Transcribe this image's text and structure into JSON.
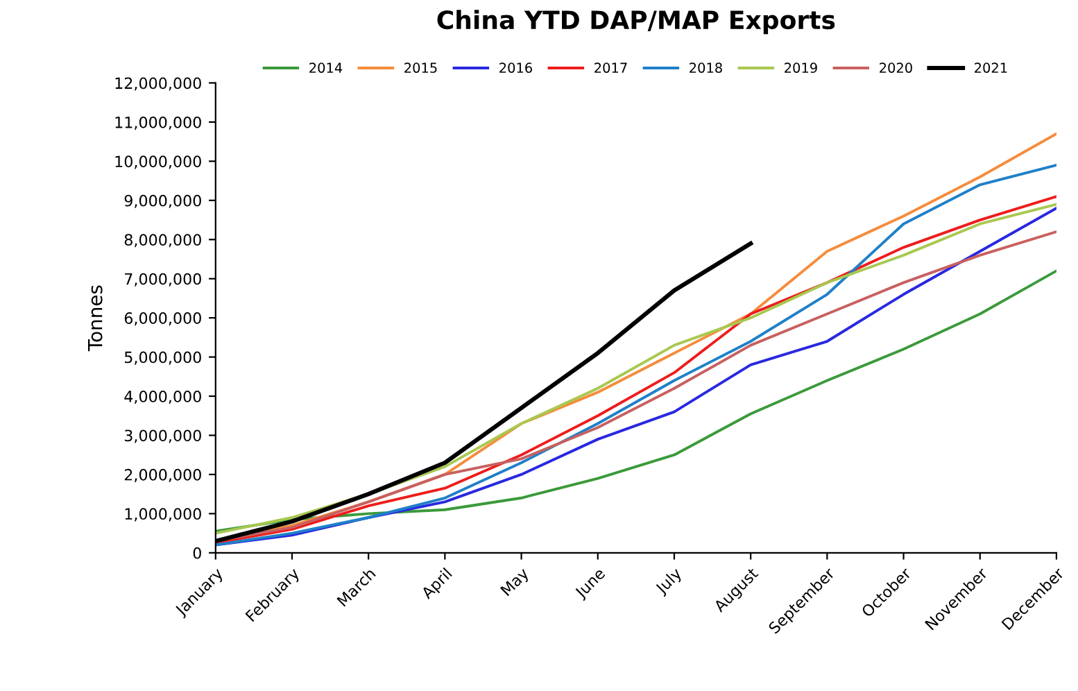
{
  "chart_data": {
    "type": "line",
    "title": "China YTD DAP/MAP Exports",
    "ylabel": "Tonnes",
    "categories": [
      "January",
      "February",
      "March",
      "April",
      "May",
      "June",
      "July",
      "August",
      "September",
      "October",
      "November",
      "December"
    ],
    "series": [
      {
        "name": "2014",
        "color": "#3a9a3a",
        "values": [
          550000,
          850000,
          1000000,
          1100000,
          1400000,
          1900000,
          2500000,
          3550000,
          4400000,
          5200000,
          6100000,
          7200000
        ]
      },
      {
        "name": "2015",
        "color": "#f58c3c",
        "values": [
          300000,
          700000,
          1300000,
          2000000,
          3300000,
          4100000,
          5100000,
          6100000,
          7700000,
          8600000,
          9600000,
          10700000
        ]
      },
      {
        "name": "2016",
        "color": "#2828e0",
        "values": [
          200000,
          450000,
          900000,
          1300000,
          2000000,
          2900000,
          3600000,
          4800000,
          5400000,
          6600000,
          7700000,
          8800000
        ]
      },
      {
        "name": "2017",
        "color": "#ee1c1c",
        "values": [
          250000,
          600000,
          1200000,
          1650000,
          2500000,
          3500000,
          4600000,
          6100000,
          6900000,
          7800000,
          8500000,
          9100000
        ]
      },
      {
        "name": "2018",
        "color": "#1f80c8",
        "values": [
          200000,
          500000,
          900000,
          1400000,
          2300000,
          3300000,
          4400000,
          5400000,
          6600000,
          8400000,
          9400000,
          9900000
        ]
      },
      {
        "name": "2019",
        "color": "#a8c850",
        "values": [
          500000,
          900000,
          1500000,
          2200000,
          3300000,
          4200000,
          5300000,
          6000000,
          6900000,
          7600000,
          8400000,
          8900000
        ]
      },
      {
        "name": "2020",
        "color": "#c86060",
        "values": [
          300000,
          650000,
          1300000,
          2000000,
          2400000,
          3200000,
          4200000,
          5300000,
          6100000,
          6900000,
          7600000,
          8200000
        ]
      },
      {
        "name": "2021",
        "color": "#000000",
        "values": [
          300000,
          800000,
          1500000,
          2300000,
          3700000,
          5100000,
          6700000,
          7900000,
          null,
          null,
          null,
          null
        ]
      }
    ],
    "ylim": [
      0,
      12000000
    ],
    "yticks": [
      {
        "value": 0,
        "label": "0"
      },
      {
        "value": 1000000,
        "label": "1,000,000"
      },
      {
        "value": 2000000,
        "label": "2,000,000"
      },
      {
        "value": 3000000,
        "label": "3,000,000"
      },
      {
        "value": 4000000,
        "label": "4,000,000"
      },
      {
        "value": 5000000,
        "label": "5,000,000"
      },
      {
        "value": 6000000,
        "label": "6,000,000"
      },
      {
        "value": 7000000,
        "label": "7,000,000"
      },
      {
        "value": 8000000,
        "label": "8,000,000"
      },
      {
        "value": 9000000,
        "label": "9,000,000"
      },
      {
        "value": 10000000,
        "label": "10,000,000"
      },
      {
        "value": 11000000,
        "label": "11,000,000"
      },
      {
        "value": 12000000,
        "label": "12,000,000"
      }
    ],
    "grid": false,
    "legend": "top",
    "marker": "none",
    "line_style": "solid"
  }
}
